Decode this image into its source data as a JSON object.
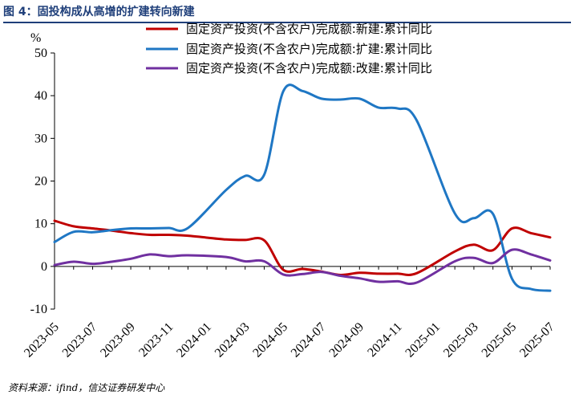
{
  "figure": {
    "title": "图 4：固投构成从高增的扩建转向新建",
    "source": "资料来源：ifind，信达证券研发中心"
  },
  "chart_data": {
    "type": "line",
    "ylabel": "%",
    "ylim": [
      -10,
      50
    ],
    "yticks": [
      -10,
      0,
      10,
      20,
      30,
      40,
      50
    ],
    "xticks": [
      "2023-05",
      "2023-07",
      "2023-09",
      "2023-11",
      "2024-01",
      "2024-03",
      "2024-05",
      "2024-07",
      "2024-09",
      "2024-11",
      "2025-01",
      "2025-03",
      "2025-05",
      "2025-07"
    ],
    "x": [
      "2023-05",
      "2023-06",
      "2023-07",
      "2023-08",
      "2023-09",
      "2023-10",
      "2023-11",
      "2023-12",
      "2024-02",
      "2024-03",
      "2024-04",
      "2024-05",
      "2024-06",
      "2024-07",
      "2024-08",
      "2024-09",
      "2024-10",
      "2024-11",
      "2024-12",
      "2025-02",
      "2025-03",
      "2025-04",
      "2025-05",
      "2025-06",
      "2025-07"
    ],
    "legend_position": "top",
    "grid": false,
    "series": [
      {
        "name": "固定资产投资(不含农户)完成额:新建:累计同比",
        "color": "#c00000",
        "values": [
          10.7,
          9.4,
          8.9,
          8.4,
          7.8,
          7.4,
          7.4,
          7.2,
          6.3,
          6.2,
          6.1,
          -0.8,
          -0.6,
          -1.2,
          -2.0,
          -1.5,
          -1.7,
          -1.7,
          -1.6,
          3.5,
          5.1,
          3.8,
          8.9,
          7.8,
          6.8
        ]
      },
      {
        "name": "固定资产投资(不含农户)完成额:扩建:累计同比",
        "color": "#1f77c4",
        "values": [
          5.7,
          8.1,
          8.0,
          8.5,
          8.9,
          8.9,
          9.0,
          9.0,
          17.9,
          21.2,
          21.5,
          41.0,
          41.1,
          39.3,
          39.1,
          39.3,
          37.2,
          37.0,
          34.2,
          12.4,
          11.3,
          12.3,
          -2.9,
          -5.3,
          -5.7
        ]
      },
      {
        "name": "固定资产投资(不含农户)完成额:改建:累计同比",
        "color": "#7030a0",
        "values": [
          0.3,
          1.1,
          0.6,
          1.1,
          1.8,
          2.8,
          2.4,
          2.6,
          2.2,
          1.2,
          1.2,
          -1.9,
          -1.8,
          -1.3,
          -2.2,
          -2.8,
          -3.6,
          -3.5,
          -3.8,
          1.2,
          2.0,
          0.8,
          3.9,
          2.8,
          1.4
        ]
      }
    ]
  }
}
